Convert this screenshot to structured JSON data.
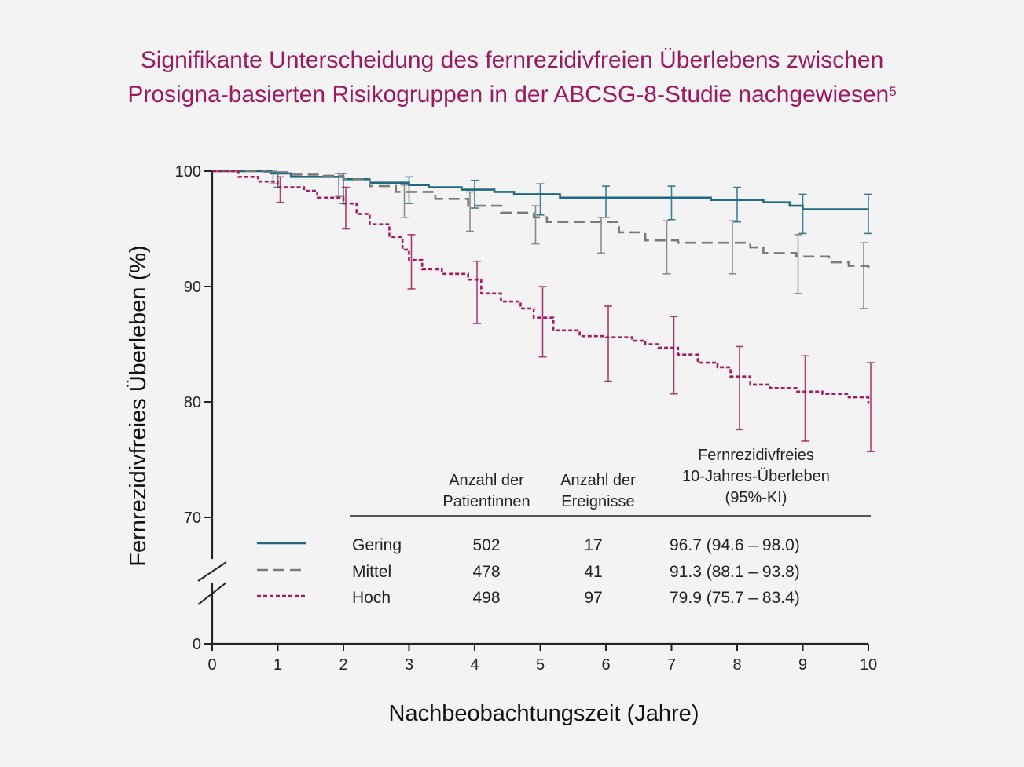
{
  "title": {
    "line1": "Signifikante Unterscheidung des fernrezidivfreien Überlebens zwischen",
    "line2": "Prosigna-basierten Risikogruppen in der ABCSG-8-Studie nachgewiesen",
    "superscript": "5"
  },
  "colors": {
    "low": "#1f6a80",
    "mid": "#7a7a7a",
    "high": "#a21b5e",
    "title": "#9b1a62",
    "axis": "#222222"
  },
  "chart_data": {
    "type": "line",
    "xlabel": "Nachbeobachtungszeit (Jahre)",
    "ylabel": "Fernrezidivfreies Überleben (%)",
    "xlim": [
      0,
      10
    ],
    "ylim": [
      70,
      100
    ],
    "y_axis_break": true,
    "x_ticks": [
      "0",
      "1",
      "2",
      "3",
      "4",
      "5",
      "6",
      "7",
      "8",
      "9",
      "10"
    ],
    "y_ticks": [
      "100",
      "90",
      "80",
      "70",
      "0"
    ],
    "series": [
      {
        "name": "Gering",
        "style": "solid",
        "color": "#1f6a80",
        "points": [
          [
            0,
            100
          ],
          [
            0.9,
            99.8
          ],
          [
            1.2,
            99.5
          ],
          [
            2,
            99.3
          ],
          [
            2.4,
            99.0
          ],
          [
            3,
            98.8
          ],
          [
            3.3,
            98.6
          ],
          [
            3.8,
            98.4
          ],
          [
            4.3,
            98.2
          ],
          [
            4.6,
            98.0
          ],
          [
            5.3,
            97.7
          ],
          [
            6,
            97.7
          ],
          [
            7,
            97.7
          ],
          [
            7.6,
            97.5
          ],
          [
            8.4,
            97.3
          ],
          [
            8.8,
            97.0
          ],
          [
            9,
            96.7
          ],
          [
            10,
            96.7
          ]
        ],
        "error_bars": [
          {
            "x": 1,
            "low": 98.6,
            "high": 99.9
          },
          {
            "x": 2,
            "low": 97.2,
            "high": 99.8
          },
          {
            "x": 3,
            "low": 97.2,
            "high": 99.5
          },
          {
            "x": 4,
            "low": 96.8,
            "high": 99.2
          },
          {
            "x": 5,
            "low": 96.2,
            "high": 98.9
          },
          {
            "x": 6,
            "low": 96.0,
            "high": 98.7
          },
          {
            "x": 7,
            "low": 95.8,
            "high": 98.7
          },
          {
            "x": 8,
            "low": 95.6,
            "high": 98.6
          },
          {
            "x": 9,
            "low": 94.6,
            "high": 98.0
          },
          {
            "x": 10,
            "low": 94.6,
            "high": 98.0
          }
        ]
      },
      {
        "name": "Mittel",
        "style": "dashed",
        "color": "#7a7a7a",
        "points": [
          [
            0,
            100
          ],
          [
            0.8,
            99.9
          ],
          [
            1.2,
            99.7
          ],
          [
            1.7,
            99.6
          ],
          [
            2,
            99.3
          ],
          [
            2.4,
            98.7
          ],
          [
            2.8,
            98.2
          ],
          [
            3.4,
            97.6
          ],
          [
            3.9,
            97.0
          ],
          [
            4.4,
            96.4
          ],
          [
            4.9,
            96.0
          ],
          [
            5.1,
            95.6
          ],
          [
            5.9,
            95.6
          ],
          [
            6.2,
            94.7
          ],
          [
            6.6,
            94.0
          ],
          [
            7.1,
            93.8
          ],
          [
            7.9,
            93.8
          ],
          [
            8.2,
            93.4
          ],
          [
            8.4,
            92.9
          ],
          [
            8.9,
            92.6
          ],
          [
            9.4,
            92.1
          ],
          [
            9.7,
            91.8
          ],
          [
            10,
            91.3
          ]
        ],
        "error_bars": [
          {
            "x": 1,
            "low": 98.9,
            "high": 100
          },
          {
            "x": 2,
            "low": 97.8,
            "high": 99.8
          },
          {
            "x": 3,
            "low": 96.0,
            "high": 98.8
          },
          {
            "x": 4,
            "low": 94.8,
            "high": 98.2
          },
          {
            "x": 5,
            "low": 93.7,
            "high": 97.0
          },
          {
            "x": 6,
            "low": 92.9,
            "high": 96.0
          },
          {
            "x": 7,
            "low": 91.1,
            "high": 95.7
          },
          {
            "x": 8,
            "low": 91.1,
            "high": 95.7
          },
          {
            "x": 9,
            "low": 89.4,
            "high": 94.5
          },
          {
            "x": 10,
            "low": 88.1,
            "high": 93.8
          }
        ]
      },
      {
        "name": "Hoch",
        "style": "dotted",
        "color": "#a21b5e",
        "points": [
          [
            0,
            100
          ],
          [
            0.4,
            99.5
          ],
          [
            0.7,
            99.1
          ],
          [
            1,
            98.6
          ],
          [
            1.4,
            98.3
          ],
          [
            1.6,
            97.7
          ],
          [
            2,
            97.2
          ],
          [
            2.2,
            96.3
          ],
          [
            2.4,
            95.4
          ],
          [
            2.7,
            94.3
          ],
          [
            2.9,
            93.2
          ],
          [
            3,
            92.3
          ],
          [
            3.2,
            91.5
          ],
          [
            3.5,
            91.1
          ],
          [
            3.9,
            90.6
          ],
          [
            4.1,
            89.4
          ],
          [
            4.4,
            88.7
          ],
          [
            4.7,
            88.1
          ],
          [
            4.9,
            87.3
          ],
          [
            5.2,
            86.2
          ],
          [
            5.6,
            85.7
          ],
          [
            6,
            85.6
          ],
          [
            6.4,
            85.3
          ],
          [
            6.6,
            85.0
          ],
          [
            6.8,
            84.7
          ],
          [
            7.1,
            84.1
          ],
          [
            7.4,
            83.4
          ],
          [
            7.7,
            83.0
          ],
          [
            7.9,
            82.2
          ],
          [
            8.2,
            81.5
          ],
          [
            8.5,
            81.2
          ],
          [
            8.9,
            80.9
          ],
          [
            9.3,
            80.7
          ],
          [
            9.7,
            80.4
          ],
          [
            10,
            79.9
          ]
        ],
        "error_bars": [
          {
            "x": 1,
            "low": 97.3,
            "high": 99.5
          },
          {
            "x": 2,
            "low": 95.0,
            "high": 98.6
          },
          {
            "x": 3,
            "low": 89.8,
            "high": 94.5
          },
          {
            "x": 4,
            "low": 86.8,
            "high": 92.2
          },
          {
            "x": 5,
            "low": 83.9,
            "high": 90.0
          },
          {
            "x": 6,
            "low": 81.8,
            "high": 88.3
          },
          {
            "x": 7,
            "low": 80.7,
            "high": 87.4
          },
          {
            "x": 8,
            "low": 77.6,
            "high": 84.8
          },
          {
            "x": 9,
            "low": 76.6,
            "high": 84.0
          },
          {
            "x": 10,
            "low": 75.7,
            "high": 83.4
          }
        ]
      }
    ]
  },
  "table": {
    "headers": {
      "patients": [
        "Anzahl der",
        "Patientinnen"
      ],
      "events": [
        "Anzahl der",
        "Ereignisse"
      ],
      "survival": [
        "Fernrezidivfreies",
        "10-Jahres-Überleben",
        "(95%-KI)"
      ]
    },
    "rows": [
      {
        "label": "Gering",
        "patients": "502",
        "events": "17",
        "survival": "96.7 (94.6 – 98.0)"
      },
      {
        "label": "Mittel",
        "patients": "478",
        "events": "41",
        "survival": "91.3 (88.1 – 93.8)"
      },
      {
        "label": "Hoch",
        "patients": "498",
        "events": "97",
        "survival": "79.9 (75.7 – 83.4)"
      }
    ]
  }
}
